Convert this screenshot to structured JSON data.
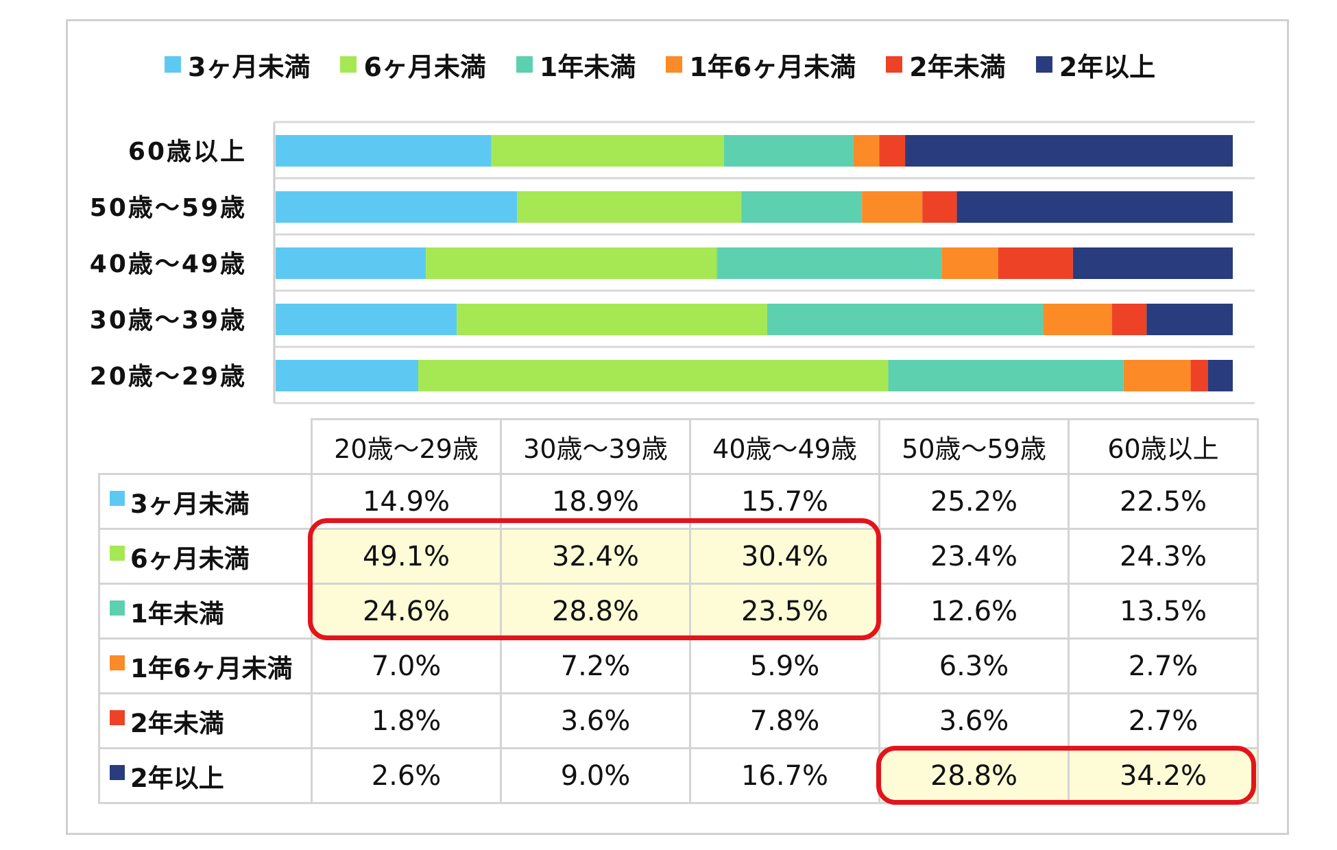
{
  "colors": {
    "3m": "#5dc9f2",
    "6m": "#a6e853",
    "1y": "#5dd0b0",
    "1y6m": "#fb8a27",
    "2y_under": "#ee4227",
    "2y_over": "#283c7e"
  },
  "legend": [
    {
      "key": "3m",
      "label": "3ヶ月未満"
    },
    {
      "key": "6m",
      "label": "6ヶ月未満"
    },
    {
      "key": "1y",
      "label": "1年未満"
    },
    {
      "key": "1y6m",
      "label": "1年6ヶ月未満"
    },
    {
      "key": "2y_under",
      "label": "2年未満"
    },
    {
      "key": "2y_over",
      "label": "2年以上"
    }
  ],
  "chart_data": {
    "type": "bar",
    "orientation": "horizontal",
    "stacked": "percent",
    "categories": [
      "60歳以上",
      "50歳～59歳",
      "40歳～49歳",
      "30歳～39歳",
      "20歳～29歳"
    ],
    "series": [
      {
        "name": "3ヶ月未満",
        "values": [
          22.5,
          25.2,
          15.7,
          18.9,
          14.9
        ]
      },
      {
        "name": "6ヶ月未満",
        "values": [
          24.3,
          23.4,
          30.4,
          32.4,
          49.1
        ]
      },
      {
        "name": "1年未満",
        "values": [
          13.5,
          12.6,
          23.5,
          28.8,
          24.6
        ]
      },
      {
        "name": "1年6ヶ月未満",
        "values": [
          2.7,
          6.3,
          5.9,
          7.2,
          7.0
        ]
      },
      {
        "name": "2年未満",
        "values": [
          2.7,
          3.6,
          7.8,
          3.6,
          1.8
        ]
      },
      {
        "name": "2年以上",
        "values": [
          34.2,
          28.8,
          16.7,
          9.0,
          2.6
        ]
      }
    ],
    "legend_position": "top"
  },
  "table": {
    "headers": [
      "20歳～29歳",
      "30歳～39歳",
      "40歳～49歳",
      "50歳～59歳",
      "60歳以上"
    ],
    "rows": [
      {
        "key": "3m",
        "label": "3ヶ月未満",
        "values": [
          "14.9%",
          "18.9%",
          "15.7%",
          "25.2%",
          "22.5%"
        ]
      },
      {
        "key": "6m",
        "label": "6ヶ月未満",
        "values": [
          "49.1%",
          "32.4%",
          "30.4%",
          "23.4%",
          "24.3%"
        ]
      },
      {
        "key": "1y",
        "label": "1年未満",
        "values": [
          "24.6%",
          "28.8%",
          "23.5%",
          "12.6%",
          "13.5%"
        ]
      },
      {
        "key": "1y6m",
        "label": "1年6ヶ月未満",
        "values": [
          "7.0%",
          "7.2%",
          "5.9%",
          "6.3%",
          "2.7%"
        ]
      },
      {
        "key": "2y_under",
        "label": "2年未満",
        "values": [
          "1.8%",
          "3.6%",
          "7.8%",
          "3.6%",
          "2.7%"
        ]
      },
      {
        "key": "2y_over",
        "label": "2年以上",
        "values": [
          "2.6%",
          "9.0%",
          "16.7%",
          "28.8%",
          "34.2%"
        ]
      }
    ]
  }
}
